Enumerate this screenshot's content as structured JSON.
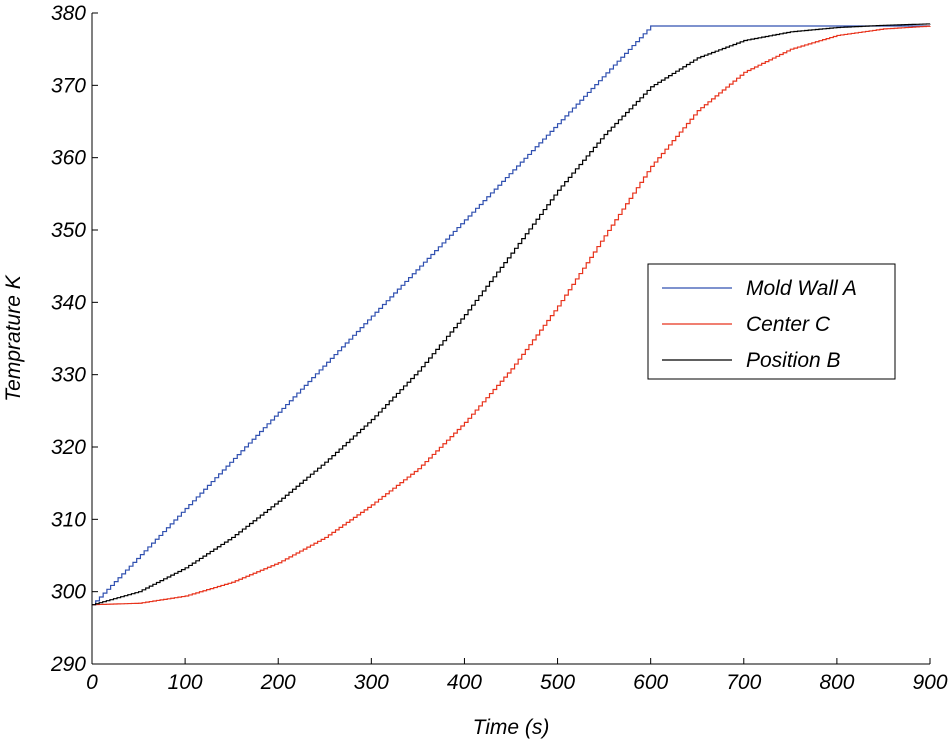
{
  "chart_data": {
    "type": "line",
    "title": "",
    "xlabel": "Time  (s)",
    "ylabel": "Temprature K",
    "xlim": [
      0,
      900
    ],
    "ylim": [
      290,
      380
    ],
    "xticks": [
      0,
      100,
      200,
      300,
      400,
      500,
      600,
      700,
      800,
      900
    ],
    "yticks": [
      290,
      300,
      310,
      320,
      330,
      340,
      350,
      360,
      370,
      380
    ],
    "grid": false,
    "legend_position": "right",
    "series": [
      {
        "name": "Mold  Wall  A",
        "color": "#3050b0",
        "x": [
          0,
          100,
          200,
          300,
          400,
          500,
          600,
          700,
          800,
          900
        ],
        "y": [
          298.2,
          311.5,
          324.8,
          338.1,
          351.4,
          364.7,
          378.2,
          378.2,
          378.2,
          378.2
        ]
      },
      {
        "name": "Center  C",
        "color": "#e8331c",
        "x": [
          0,
          50,
          100,
          150,
          200,
          250,
          300,
          350,
          400,
          450,
          500,
          550,
          600,
          650,
          700,
          750,
          800,
          850,
          900
        ],
        "y": [
          298.2,
          298.4,
          299.4,
          301.3,
          304.0,
          307.5,
          312.0,
          317.0,
          323.4,
          330.8,
          339.5,
          349.2,
          358.8,
          366.5,
          371.8,
          375.0,
          376.9,
          377.8,
          378.2
        ]
      },
      {
        "name": "Position  B",
        "color": "#000000",
        "x": [
          0,
          50,
          100,
          150,
          200,
          250,
          300,
          350,
          400,
          450,
          500,
          550,
          600,
          650,
          700,
          750,
          800,
          850,
          900
        ],
        "y": [
          298.2,
          300.0,
          303.3,
          307.5,
          312.5,
          317.9,
          323.8,
          330.5,
          338.3,
          346.8,
          355.5,
          363.2,
          369.8,
          373.8,
          376.2,
          377.4,
          378.0,
          378.3,
          378.5
        ]
      }
    ]
  }
}
